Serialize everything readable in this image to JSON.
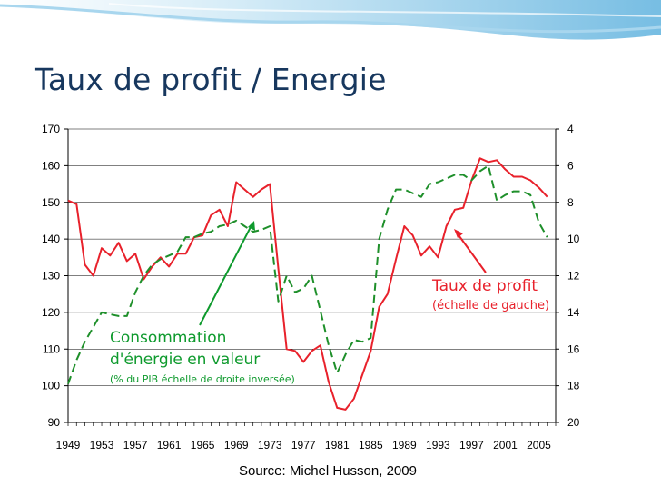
{
  "slide": {
    "title": "Taux de profit / Energie",
    "source": "Source: Michel Husson, 2009"
  },
  "colors": {
    "title": "#17375e",
    "profit": "#e8212b",
    "energy": "#1e8f2a",
    "header_wave": "#7fc4e6"
  },
  "chart_data": {
    "type": "line",
    "grid": "horizontal",
    "x_range": [
      1949,
      2007
    ],
    "x_ticks": [
      "1949",
      "1953",
      "1957",
      "1961",
      "1965",
      "1969",
      "1973",
      "1977",
      "1981",
      "1985",
      "1989",
      "1993",
      "1997",
      "2001",
      "2005"
    ],
    "y_left": {
      "range": [
        90,
        170
      ],
      "ticks": [
        "90",
        "100",
        "110",
        "120",
        "130",
        "140",
        "150",
        "160",
        "170"
      ]
    },
    "y_right": {
      "range": [
        20,
        4
      ],
      "inverted": true,
      "ticks": [
        "4",
        "6",
        "8",
        "10",
        "12",
        "14",
        "16",
        "18",
        "20"
      ]
    },
    "series": [
      {
        "name": "Taux de profit",
        "axis": "left",
        "style": "solid",
        "x": [
          1949,
          1950,
          1951,
          1952,
          1953,
          1954,
          1955,
          1956,
          1957,
          1958,
          1959,
          1960,
          1961,
          1962,
          1963,
          1964,
          1965,
          1966,
          1967,
          1968,
          1969,
          1970,
          1971,
          1972,
          1973,
          1974,
          1975,
          1976,
          1977,
          1978,
          1979,
          1980,
          1981,
          1982,
          1983,
          1984,
          1985,
          1986,
          1987,
          1988,
          1989,
          1990,
          1991,
          1992,
          1993,
          1994,
          1995,
          1996,
          1997,
          1998,
          1999,
          2000,
          2001,
          2002,
          2003,
          2004,
          2005,
          2006
        ],
        "values": [
          150.5,
          149.5,
          133,
          130,
          137.5,
          135.5,
          139,
          134,
          136,
          129,
          132.5,
          135,
          132.5,
          136,
          136,
          140.5,
          141,
          146.5,
          148,
          143.5,
          155.5,
          153.5,
          151.5,
          153.5,
          155,
          132,
          110,
          109.5,
          106.5,
          109.5,
          111,
          101,
          94,
          93.5,
          96.5,
          103,
          109.5,
          121.5,
          125,
          134.5,
          143.5,
          141,
          135.5,
          138,
          135,
          143.5,
          148,
          148.5,
          156,
          162,
          161,
          161.5,
          159,
          157,
          157,
          156,
          154,
          151.5
        ]
      },
      {
        "name": "Consommation d'énergie en valeur",
        "axis": "right",
        "style": "dashed",
        "x": [
          1949,
          1950,
          1951,
          1952,
          1953,
          1954,
          1955,
          1956,
          1957,
          1958,
          1959,
          1960,
          1961,
          1962,
          1963,
          1964,
          1965,
          1966,
          1967,
          1968,
          1969,
          1970,
          1971,
          1972,
          1973,
          1974,
          1975,
          1976,
          1977,
          1978,
          1979,
          1980,
          1981,
          1982,
          1983,
          1984,
          1985,
          1986,
          1987,
          1988,
          1989,
          1990,
          1991,
          1992,
          1993,
          1994,
          1995,
          1996,
          1997,
          1998,
          1999,
          2000,
          2001,
          2002,
          2003,
          2004,
          2005,
          2006
        ],
        "values": [
          17.9,
          16.6,
          15.6,
          14.8,
          14,
          14.1,
          14.2,
          14.2,
          12.9,
          12,
          11.4,
          11.1,
          10.9,
          10.7,
          9.9,
          9.9,
          9.7,
          9.6,
          9.3,
          9.2,
          9.0,
          9.3,
          9.6,
          9.5,
          9.3,
          13.4,
          12.0,
          12.9,
          12.7,
          12.0,
          13.9,
          15.8,
          17.3,
          16.3,
          15.5,
          15.6,
          15.4,
          10.0,
          8.4,
          7.3,
          7.3,
          7.5,
          7.7,
          7.0,
          6.9,
          6.7,
          6.5,
          6.5,
          6.8,
          6.3,
          6.0,
          7.9,
          7.6,
          7.4,
          7.4,
          7.6,
          9.1,
          9.9
        ]
      }
    ],
    "annotations": [
      {
        "series": "Taux de profit",
        "lines": [
          "Taux de profit",
          "(échelle de gauche)"
        ]
      },
      {
        "series": "Consommation d'énergie en valeur",
        "lines": [
          "Consommation",
          "d'énergie en valeur",
          "(% du PIB échelle de droite inversée)"
        ]
      }
    ]
  }
}
